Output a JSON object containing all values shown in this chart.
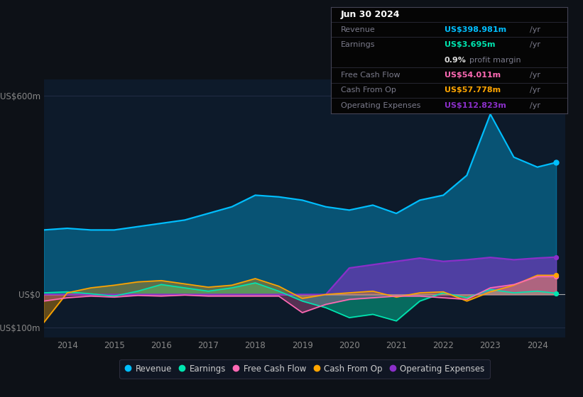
{
  "bg_color": "#0d1117",
  "plot_bg_color": "#0d1a2a",
  "years": [
    2013.5,
    2014.0,
    2014.5,
    2015.0,
    2015.5,
    2016.0,
    2016.5,
    2017.0,
    2017.5,
    2018.0,
    2018.5,
    2019.0,
    2019.5,
    2020.0,
    2020.5,
    2021.0,
    2021.5,
    2022.0,
    2022.5,
    2023.0,
    2023.5,
    2024.0,
    2024.4
  ],
  "revenue": [
    195,
    200,
    195,
    195,
    205,
    215,
    225,
    245,
    265,
    300,
    295,
    285,
    265,
    255,
    270,
    245,
    285,
    300,
    360,
    545,
    415,
    385,
    399
  ],
  "earnings": [
    5,
    8,
    2,
    -5,
    10,
    30,
    20,
    10,
    20,
    35,
    10,
    -20,
    -40,
    -70,
    -60,
    -80,
    -20,
    5,
    -10,
    15,
    5,
    10,
    3.7
  ],
  "free_cash_flow": [
    -20,
    -10,
    -5,
    -8,
    -3,
    -5,
    -2,
    -5,
    -5,
    -5,
    -5,
    -55,
    -30,
    -15,
    -10,
    -5,
    -5,
    -10,
    -15,
    20,
    30,
    54,
    54
  ],
  "cash_from_op": [
    -85,
    5,
    20,
    28,
    38,
    42,
    32,
    22,
    28,
    48,
    25,
    -12,
    0,
    5,
    10,
    -8,
    5,
    8,
    -20,
    8,
    28,
    58,
    58
  ],
  "operating_expenses": [
    0,
    0,
    0,
    0,
    0,
    0,
    0,
    0,
    0,
    0,
    0,
    0,
    0,
    80,
    90,
    100,
    110,
    100,
    105,
    112,
    105,
    110,
    113
  ],
  "ylim_min": -130,
  "ylim_max": 650,
  "ytick_positions": [
    -100,
    0,
    600
  ],
  "ytick_labels": [
    "-US$100m",
    "US$0",
    "US$600m"
  ],
  "xlim_min": 2013.5,
  "xlim_max": 2024.6,
  "xtick_positions": [
    2014,
    2015,
    2016,
    2017,
    2018,
    2019,
    2020,
    2021,
    2022,
    2023,
    2024
  ],
  "revenue_color": "#00bfff",
  "earnings_color": "#00e5b0",
  "free_cash_flow_color": "#ff69b4",
  "cash_from_op_color": "#ffa500",
  "operating_expenses_color": "#8b2fc9",
  "grid_color": "#2a3550",
  "zero_line_color": "#aaaaaa",
  "tick_color": "#888888",
  "info_box": {
    "date": "Jun 30 2024",
    "revenue_label": "Revenue",
    "revenue_val": "US$398.981m",
    "revenue_suffix": " /yr",
    "earnings_label": "Earnings",
    "earnings_val": "US$3.695m",
    "earnings_suffix": " /yr",
    "margin_val": "0.9%",
    "margin_text": " profit margin",
    "fcf_label": "Free Cash Flow",
    "fcf_val": "US$54.011m",
    "fcf_suffix": " /yr",
    "cop_label": "Cash From Op",
    "cop_val": "US$57.778m",
    "cop_suffix": " /yr",
    "opex_label": "Operating Expenses",
    "opex_val": "US$112.823m",
    "opex_suffix": " /yr"
  },
  "legend_labels": [
    "Revenue",
    "Earnings",
    "Free Cash Flow",
    "Cash From Op",
    "Operating Expenses"
  ]
}
